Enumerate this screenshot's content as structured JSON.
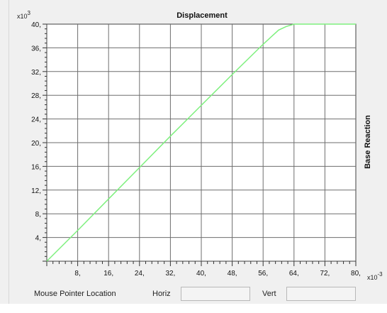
{
  "chart_data": {
    "type": "line",
    "title": "Displacement",
    "ylabel": "Base Reaction",
    "xlabel": "",
    "x_multiplier": "x10",
    "x_exponent": "-3",
    "y_multiplier": "x10",
    "y_exponent": "3",
    "xlim": [
      0,
      80
    ],
    "ylim": [
      0,
      40
    ],
    "x_ticks": [
      8,
      16,
      24,
      32,
      40,
      48,
      56,
      64,
      72,
      80
    ],
    "x_tick_labels": [
      "8,",
      "16,",
      "24,",
      "32,",
      "40,",
      "48,",
      "56,",
      "64,",
      "72,",
      "80,"
    ],
    "y_ticks": [
      4,
      8,
      12,
      16,
      20,
      24,
      28,
      32,
      36,
      40
    ],
    "y_tick_labels": [
      "4,",
      "8,",
      "12,",
      "16,",
      "20,",
      "24,",
      "28,",
      "32,",
      "36,",
      "40,"
    ],
    "grid": true,
    "line_color": "#7ef07e",
    "series": [
      {
        "x": [
          0,
          8,
          16,
          24,
          32,
          40,
          48,
          56,
          60,
          62,
          64,
          68,
          72,
          76,
          80
        ],
        "y": [
          0,
          5.2,
          10.5,
          15.8,
          21.1,
          26.3,
          31.5,
          36.6,
          39.0,
          39.6,
          40.0,
          40.5,
          40.7,
          40.8,
          40.9
        ]
      }
    ]
  },
  "status": {
    "mouse_label": "Mouse Pointer Location",
    "horiz_label": "Horiz",
    "horiz_value": "",
    "vert_label": "Vert",
    "vert_value": ""
  }
}
